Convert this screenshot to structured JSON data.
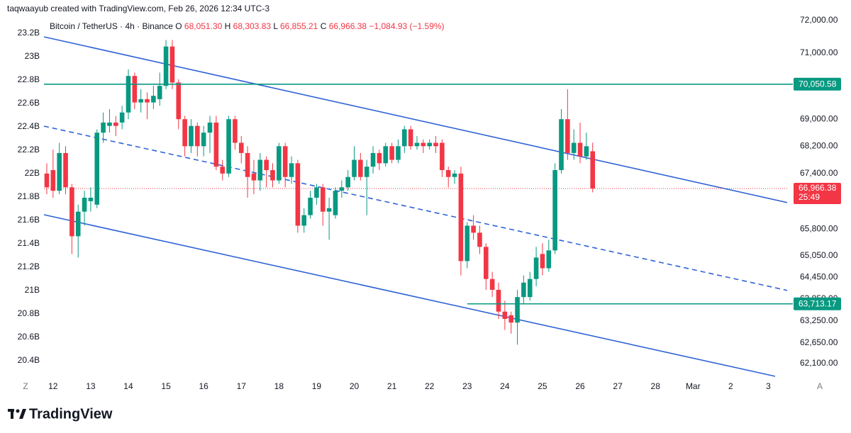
{
  "header": {
    "attribution": "taqwaayub created with TradingView.com, Feb 26, 2026 12:34 UTC-3"
  },
  "footer": {
    "brand": "TradingView"
  },
  "controls": {
    "left": "Z",
    "right": "A"
  },
  "chart_data": {
    "type": "candlestick",
    "symbol": "Bitcoin / TetherUS · 4h · Binance",
    "legend_ohlc": [
      {
        "key": "O",
        "value": "68,051.30"
      },
      {
        "key": "H",
        "value": "68,303.83"
      },
      {
        "key": "L",
        "value": "66,855.21"
      },
      {
        "key": "C",
        "value": "66,966.38"
      }
    ],
    "change": "−1,084.93 (−1.59%)",
    "up_color": "#089981",
    "down_color": "#f23645",
    "open": [
      67400,
      67500,
      66900,
      68000,
      67000,
      65600,
      66300,
      66600,
      66500,
      68600,
      68800,
      68900,
      68900,
      69200,
      70300,
      69500,
      69600,
      69500,
      69600,
      70000,
      71200,
      70100,
      69000,
      68200,
      68800,
      68200,
      68600,
      68900,
      67600,
      67400,
      69000,
      68300,
      68000,
      67400,
      67200,
      67800,
      67500,
      67200,
      68200,
      67300,
      67700,
      65900,
      66200,
      66700,
      67000,
      66300,
      66200,
      66900,
      67000,
      67300,
      67800,
      67300,
      67600,
      68000,
      67700,
      68200,
      67800,
      68200,
      68700,
      68200,
      68300,
      68200,
      68300,
      68300,
      67500,
      67300,
      67400,
      64900,
      65900,
      65700,
      65300,
      64400,
      64100,
      63500,
      63400,
      63200,
      63900,
      63900,
      64400,
      65100,
      64700,
      65200,
      67500,
      69000,
      68000,
      68300,
      67900,
      68051.3
    ],
    "high": [
      67700,
      68100,
      68300,
      68200,
      67100,
      66500,
      66900,
      67000,
      68700,
      69200,
      69300,
      69100,
      69400,
      70500,
      70400,
      69900,
      69800,
      70000,
      70400,
      71400,
      71400,
      70200,
      69100,
      69000,
      68900,
      68800,
      69100,
      69100,
      67800,
      69100,
      69100,
      68500,
      68200,
      67800,
      68000,
      67900,
      67700,
      68300,
      68300,
      67900,
      67800,
      66400,
      66900,
      67100,
      67100,
      66700,
      67000,
      67200,
      67500,
      68200,
      68000,
      67800,
      68200,
      68100,
      68300,
      68300,
      68400,
      68800,
      68800,
      68500,
      68400,
      68400,
      68500,
      68400,
      67600,
      67500,
      67600,
      66000,
      66200,
      65900,
      65400,
      64600,
      64300,
      63800,
      63500,
      64100,
      64500,
      64600,
      65300,
      65400,
      65500,
      67700,
      69300,
      69900,
      68700,
      68900,
      68600,
      68303.83
    ],
    "low": [
      66800,
      66700,
      66800,
      66800,
      65100,
      65000,
      65900,
      66300,
      66400,
      68300,
      68600,
      68500,
      68700,
      69000,
      69300,
      69200,
      69000,
      69300,
      69400,
      69900,
      69900,
      68700,
      67900,
      68000,
      67900,
      67900,
      68000,
      67500,
      67200,
      67300,
      68100,
      67700,
      66700,
      66800,
      66900,
      67000,
      67000,
      67100,
      67000,
      67100,
      65700,
      65700,
      66100,
      66500,
      65900,
      65500,
      66100,
      66700,
      66900,
      67200,
      67200,
      66200,
      67400,
      67500,
      67600,
      67700,
      67700,
      68000,
      68100,
      68100,
      68000,
      68100,
      68000,
      67300,
      67000,
      67100,
      64500,
      64700,
      65500,
      65100,
      64100,
      63900,
      63300,
      63000,
      62900,
      62600,
      63700,
      63800,
      64200,
      64500,
      64600,
      65100,
      67400,
      67800,
      67800,
      67700,
      67800,
      66855.21
    ],
    "close": [
      67000,
      66900,
      68000,
      67000,
      65600,
      66300,
      66700,
      66700,
      68600,
      68900,
      68900,
      68800,
      69200,
      70300,
      69500,
      69600,
      69500,
      69700,
      70000,
      71200,
      70100,
      69000,
      68200,
      68800,
      68200,
      68600,
      68900,
      67600,
      67400,
      69000,
      68300,
      68000,
      67300,
      67200,
      67800,
      67500,
      67200,
      68200,
      67300,
      67700,
      65900,
      66200,
      66700,
      67000,
      66300,
      66400,
      66900,
      67000,
      67300,
      67800,
      67300,
      67600,
      68000,
      67700,
      68200,
      67800,
      68200,
      68700,
      68200,
      68300,
      68200,
      68300,
      68200,
      67500,
      67300,
      67400,
      64900,
      65900,
      65700,
      65300,
      64400,
      64100,
      63500,
      63300,
      63200,
      63900,
      64300,
      64400,
      65000,
      64700,
      65200,
      67500,
      69000,
      68000,
      68300,
      67900,
      68200,
      66966.38
    ],
    "xlim": [
      -6.1,
      118
    ],
    "xticks": [
      {
        "value": 1,
        "label": "12"
      },
      {
        "value": 7,
        "label": "13"
      },
      {
        "value": 13,
        "label": "14"
      },
      {
        "value": 19,
        "label": "15"
      },
      {
        "value": 25,
        "label": "16"
      },
      {
        "value": 31,
        "label": "17"
      },
      {
        "value": 37,
        "label": "18"
      },
      {
        "value": 43,
        "label": "19"
      },
      {
        "value": 49,
        "label": "20"
      },
      {
        "value": 55,
        "label": "21"
      },
      {
        "value": 61,
        "label": "22"
      },
      {
        "value": 67,
        "label": "23"
      },
      {
        "value": 73,
        "label": "24"
      },
      {
        "value": 79,
        "label": "25"
      },
      {
        "value": 85,
        "label": "26"
      },
      {
        "value": 91,
        "label": "27"
      },
      {
        "value": 97,
        "label": "28"
      },
      {
        "value": 103,
        "label": "Mar"
      },
      {
        "value": 109,
        "label": "2"
      },
      {
        "value": 115,
        "label": "3"
      }
    ],
    "ylim": [
      61770,
      72200
    ],
    "log_scale": true,
    "yticks": [
      {
        "value": 72000,
        "label": "72,000.00"
      },
      {
        "value": 71000,
        "label": "71,000.00"
      },
      {
        "value": 69000,
        "label": "69,000.00"
      },
      {
        "value": 68200,
        "label": "68,200.00"
      },
      {
        "value": 67400,
        "label": "67,400.00"
      },
      {
        "value": 65800,
        "label": "65,800.00"
      },
      {
        "value": 65050,
        "label": "65,050.00"
      },
      {
        "value": 64450,
        "label": "64,450.00"
      },
      {
        "value": 63850,
        "label": "63,850.00"
      },
      {
        "value": 63250,
        "label": "63,250.00"
      },
      {
        "value": 62650,
        "label": "62,650.00"
      },
      {
        "value": 62100,
        "label": "62,100.00"
      }
    ],
    "y2lim": [
      20273000000,
      23364000000
    ],
    "y2ticks": [
      {
        "value": 23200000000,
        "label": "23.2B"
      },
      {
        "value": 23000000000,
        "label": "23B"
      },
      {
        "value": 22800000000,
        "label": "22.8B"
      },
      {
        "value": 22600000000,
        "label": "22.6B"
      },
      {
        "value": 22400000000,
        "label": "22.4B"
      },
      {
        "value": 22200000000,
        "label": "22.2B"
      },
      {
        "value": 22000000000,
        "label": "22B"
      },
      {
        "value": 21800000000,
        "label": "21.8B"
      },
      {
        "value": 21600000000,
        "label": "21.6B"
      },
      {
        "value": 21400000000,
        "label": "21.4B"
      },
      {
        "value": 21200000000,
        "label": "21.2B"
      },
      {
        "value": 21000000000,
        "label": "21B"
      },
      {
        "value": 20800000000,
        "label": "20.8B"
      },
      {
        "value": 20600000000,
        "label": "20.6B"
      },
      {
        "value": 20400000000,
        "label": "20.4B"
      }
    ],
    "hlines": [
      {
        "value": 70050.58,
        "label": "70,050.58",
        "color": "#089981"
      },
      {
        "value": 63713.17,
        "label": "63,713.17",
        "color": "#089981"
      }
    ],
    "last_price": {
      "value": 66966.38,
      "label": "66,966.38",
      "color": "#f23645"
    },
    "countdown": "25:49",
    "grid": false
  }
}
